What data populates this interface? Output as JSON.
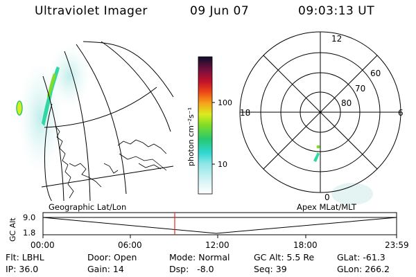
{
  "header": {
    "instrument": "Ultraviolet Imager",
    "date": "09 Jun 07",
    "time": "09:03:13 UT"
  },
  "colorbar": {
    "unit_label": "photon cm⁻²s⁻¹",
    "ticks": [
      "100",
      "10"
    ],
    "scale": "log",
    "colors": [
      "#ffffff",
      "#c7f3f5",
      "#2fd7d1",
      "#28c870",
      "#7fdc27",
      "#d9ec1f",
      "#f6a41a",
      "#ee4a16",
      "#c1122a",
      "#7a0f3e",
      "#0e0e2a"
    ]
  },
  "geo_panel": {
    "label": "Geographic Lat/Lon"
  },
  "polar_panel": {
    "label": "Apex MLat/MLT",
    "mlt_labels": {
      "top": "12",
      "left": "18",
      "right": "6",
      "bottom": "0"
    },
    "lat_labels": [
      "60",
      "70",
      "80"
    ]
  },
  "altitude_plot": {
    "axis_label": "GC Alt",
    "y_ticks": [
      "9.0",
      "1.8"
    ],
    "x_ticks": [
      "00:00",
      "06:00",
      "12:00",
      "18:00",
      "23:59"
    ],
    "marker_time": "09:03:13"
  },
  "status": {
    "flt": "Flt: LBHL",
    "ip": "IP: 36.0",
    "door": "Door: Open",
    "gain": "Gain: 14",
    "mode": "Mode: Normal",
    "dsp": "Dsp:   -8.0",
    "gcalt": "GC Alt: 5.5 Re",
    "seq": "Seq: 39",
    "glat": "GLat: -61.3",
    "glon": "GLon: 266.2"
  }
}
